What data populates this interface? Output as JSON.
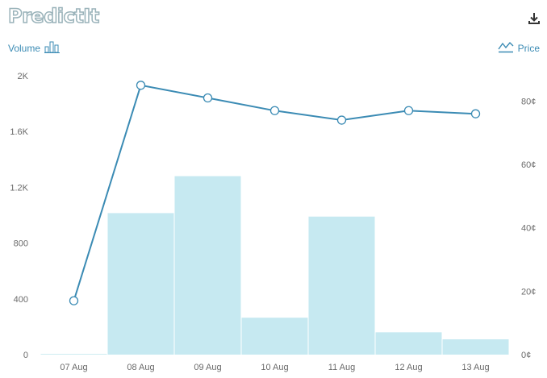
{
  "brand": {
    "logo_text": "PredictIt",
    "download_icon": "download-icon"
  },
  "legend": {
    "volume_label": "Volume",
    "volume_icon": "bar-chart-icon",
    "price_label": "Price",
    "price_icon": "price-trend-icon"
  },
  "colors": {
    "bar": "#c6e9f1",
    "line": "#3b8bb4",
    "marker_fill": "#ffffff"
  },
  "chart_data": {
    "type": "bar",
    "categories": [
      "07 Aug",
      "08 Aug",
      "09 Aug",
      "10 Aug",
      "11 Aug",
      "12 Aug",
      "13 Aug"
    ],
    "series": [
      {
        "type": "bar",
        "axis": "left",
        "values": [
          5,
          1015,
          1280,
          265,
          990,
          160,
          110
        ]
      },
      {
        "type": "line",
        "axis": "right",
        "values": [
          17,
          85,
          81,
          77,
          74,
          77,
          76
        ]
      }
    ],
    "y_left": {
      "ylim": [
        0,
        2000
      ],
      "ticks": [
        0,
        400,
        800,
        1200,
        1600,
        2000
      ],
      "tick_labels": [
        "0",
        "400",
        "800",
        "1.2K",
        "1.6K",
        "2K"
      ]
    },
    "y_right": {
      "ylim": [
        0,
        88
      ],
      "ticks": [
        0,
        20,
        40,
        60,
        80
      ],
      "tick_labels": [
        "0¢",
        "20¢",
        "40¢",
        "60¢",
        "80¢"
      ]
    },
    "grid": false,
    "legend": "top"
  }
}
